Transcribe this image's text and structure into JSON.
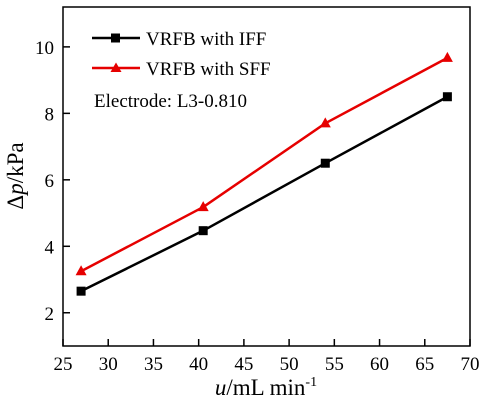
{
  "chart_data": {
    "type": "line",
    "x": [
      27,
      40.5,
      54,
      67.5
    ],
    "series": [
      {
        "name": "VRFB with IFF",
        "values": [
          2.65,
          4.47,
          6.5,
          8.5
        ],
        "color": "#000000",
        "marker": "square"
      },
      {
        "name": "VRFB with SFF",
        "values": [
          3.25,
          5.18,
          7.7,
          9.67
        ],
        "color": "#e60000",
        "marker": "triangle"
      }
    ],
    "xlim": [
      25,
      70
    ],
    "ylim": [
      1,
      11.2
    ],
    "x_ticks": [
      25,
      30,
      35,
      40,
      45,
      50,
      55,
      60,
      65,
      70
    ],
    "y_ticks": [
      2,
      4,
      6,
      8,
      10
    ],
    "xlabel": {
      "var": "u",
      "unit": "/mL min",
      "exp": "-1"
    },
    "ylabel": {
      "prefix": "Δ",
      "var": "p",
      "unit": "/kPa"
    },
    "annotation": "Electrode: L3-0.810",
    "legend_position": "top-left",
    "grid": false
  }
}
